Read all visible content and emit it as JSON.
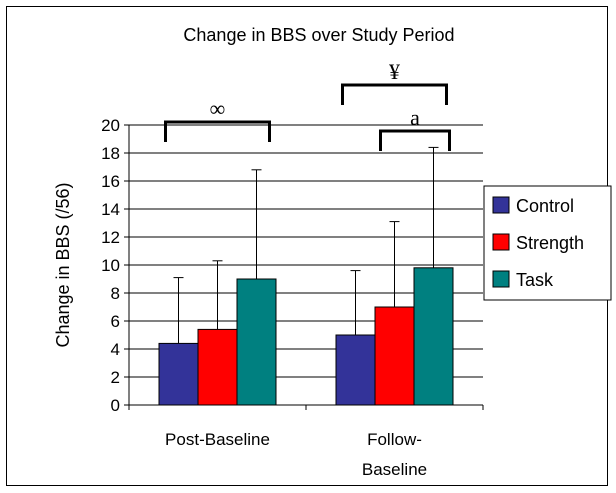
{
  "chart_data": {
    "type": "bar",
    "title": "Change in BBS over Study Period",
    "xlabel": "",
    "ylabel": "Change in BBS (/56)",
    "ylim": [
      0,
      20
    ],
    "yticks": [
      0,
      2,
      4,
      6,
      8,
      10,
      12,
      14,
      16,
      18,
      20
    ],
    "categories": [
      [
        "Post-Baseline"
      ],
      [
        "Follow-",
        "Baseline"
      ]
    ],
    "grid": "horizontal",
    "legend_position": "right",
    "series": [
      {
        "name": "Control",
        "color": "#333399",
        "values": [
          4.4,
          5.0
        ],
        "error": [
          4.7,
          4.6
        ]
      },
      {
        "name": "Strength",
        "color": "#FF0000",
        "values": [
          5.4,
          7.0
        ],
        "error": [
          4.9,
          6.1
        ]
      },
      {
        "name": "Task",
        "color": "#008080",
        "values": [
          9.0,
          9.8
        ],
        "error": [
          7.8,
          8.6
        ]
      }
    ],
    "annotations": [
      {
        "symbol": "∞",
        "category": 0,
        "from_series": 0,
        "to_series": 2
      },
      {
        "symbol": "¥",
        "category": 1,
        "from_series": 0,
        "to_series": 2
      },
      {
        "symbol": "a",
        "category": 1,
        "from_series": 1,
        "to_series": 2
      }
    ]
  }
}
